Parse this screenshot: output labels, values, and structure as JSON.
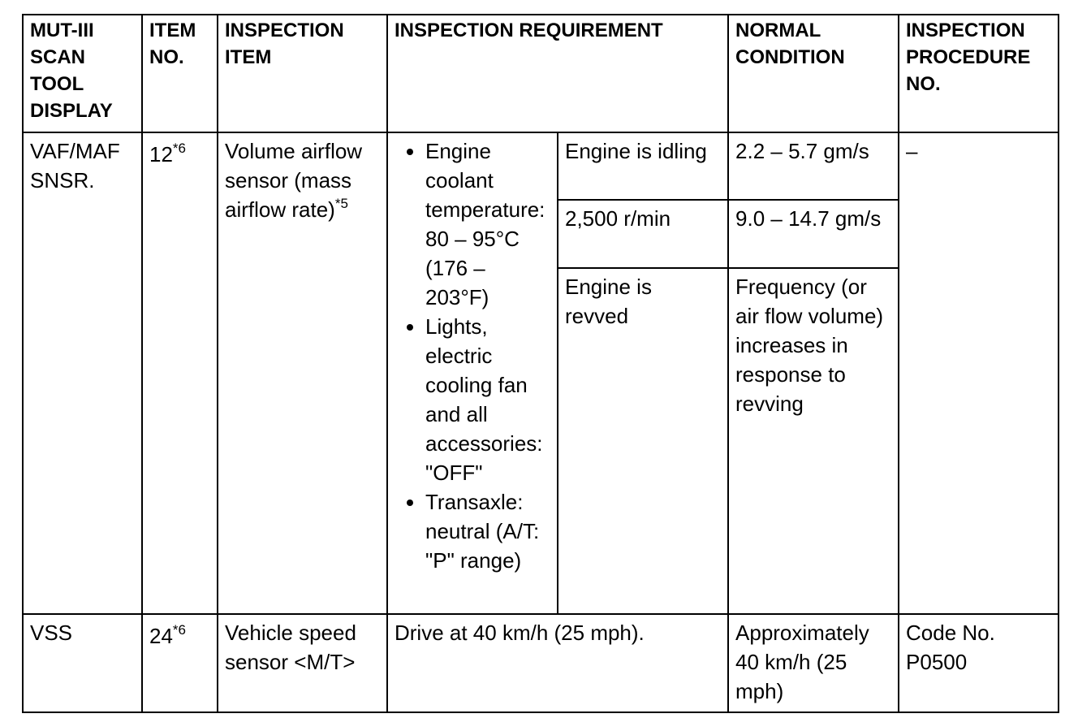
{
  "table": {
    "header": [
      "MUT-III SCAN TOOL DISPLAY",
      "ITEM NO.",
      "INSPECTION ITEM",
      "INSPECTION REQUIREMENT",
      "NORMAL CONDITION",
      "INSPECTION PROCEDURE NO."
    ],
    "rows": [
      {
        "display": "VAF/MAF SNSR.",
        "item_no": "12",
        "item_no_note": "*6",
        "item": "Volume airflow sensor (mass airflow rate)",
        "item_note": "*5",
        "requirements": [
          "Engine coolant temperature: 80 – 95°C (176 – 203°F)",
          "Lights, electric cooling fan and all accessories: \"OFF\"",
          "Transaxle: neutral (A/T: \"P\" range)"
        ],
        "conditions": [
          "Engine is idling",
          "2,500 r/min",
          "Engine is revved"
        ],
        "normal": [
          "2.2 – 5.7 gm/s",
          "9.0 – 14.7 gm/s",
          "Frequency (or air flow volume) increases in response to revving"
        ],
        "procedure": "–"
      },
      {
        "display": "VSS",
        "item_no": "24",
        "item_no_note": "*6",
        "item": "Vehicle speed sensor <M/T>",
        "requirement": "Drive at 40 km/h (25 mph).",
        "normal": "Approximately 40 km/h (25 mph)",
        "procedure": "Code No. P0500"
      }
    ]
  }
}
